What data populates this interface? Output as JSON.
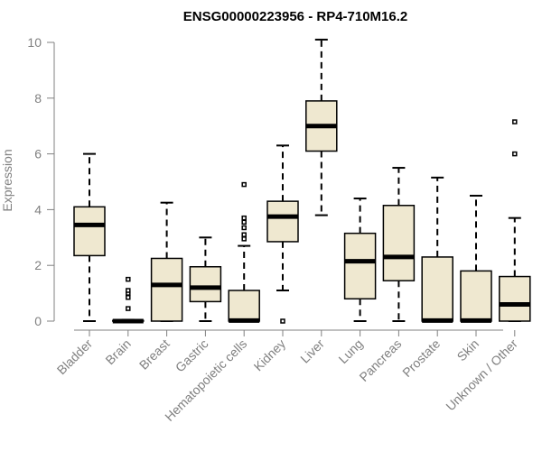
{
  "chart_data": {
    "type": "box",
    "title": "ENSG00000223956 - RP4-710M16.2",
    "ylabel": "Expression",
    "xlabel": "",
    "ylim": [
      0,
      10
    ],
    "yticks": [
      0,
      2,
      4,
      6,
      8,
      10
    ],
    "colors": {
      "box_fill": "#efe8d0",
      "axis": "#808080"
    },
    "categories": [
      "Bladder",
      "Brain",
      "Breast",
      "Gastric",
      "Hematopoietic cells",
      "Kidney",
      "Liver",
      "Lung",
      "Pancreas",
      "Prostate",
      "Skin",
      "Unknown / Other"
    ],
    "boxes": [
      {
        "name": "Bladder",
        "min": 0,
        "q1": 2.35,
        "median": 3.45,
        "q3": 4.1,
        "max": 6.0,
        "outliers": []
      },
      {
        "name": "Brain",
        "min": 0,
        "q1": 0,
        "median": 0,
        "q3": 0.02,
        "max": 0.05,
        "outliers": [
          0.45,
          0.85,
          1.0,
          1.1,
          1.5
        ]
      },
      {
        "name": "Breast",
        "min": 0,
        "q1": 0,
        "median": 1.3,
        "q3": 2.25,
        "max": 4.25,
        "outliers": []
      },
      {
        "name": "Gastric",
        "min": 0,
        "q1": 0.7,
        "median": 1.2,
        "q3": 1.95,
        "max": 3.0,
        "outliers": []
      },
      {
        "name": "Hematopoietic cells",
        "min": 0,
        "q1": 0,
        "median": 0.02,
        "q3": 1.1,
        "max": 2.7,
        "outliers": [
          2.95,
          3.1,
          3.35,
          3.55,
          3.7,
          4.9
        ]
      },
      {
        "name": "Kidney",
        "min": 1.1,
        "q1": 2.85,
        "median": 3.75,
        "q3": 4.3,
        "max": 6.3,
        "outliers": [
          0.0
        ]
      },
      {
        "name": "Liver",
        "min": 3.8,
        "q1": 6.1,
        "median": 7.0,
        "q3": 7.9,
        "max": 10.1,
        "outliers": []
      },
      {
        "name": "Lung",
        "min": 0,
        "q1": 0.8,
        "median": 2.15,
        "q3": 3.15,
        "max": 4.4,
        "outliers": []
      },
      {
        "name": "Pancreas",
        "min": 0,
        "q1": 1.45,
        "median": 2.3,
        "q3": 4.15,
        "max": 5.5,
        "outliers": []
      },
      {
        "name": "Prostate",
        "min": 0,
        "q1": 0,
        "median": 0.02,
        "q3": 2.3,
        "max": 5.15,
        "outliers": []
      },
      {
        "name": "Skin",
        "min": 0,
        "q1": 0,
        "median": 0.02,
        "q3": 1.8,
        "max": 4.5,
        "outliers": []
      },
      {
        "name": "Unknown / Other",
        "min": 0,
        "q1": 0,
        "median": 0.6,
        "q3": 1.6,
        "max": 3.7,
        "outliers": [
          6.0,
          7.15
        ]
      }
    ]
  }
}
